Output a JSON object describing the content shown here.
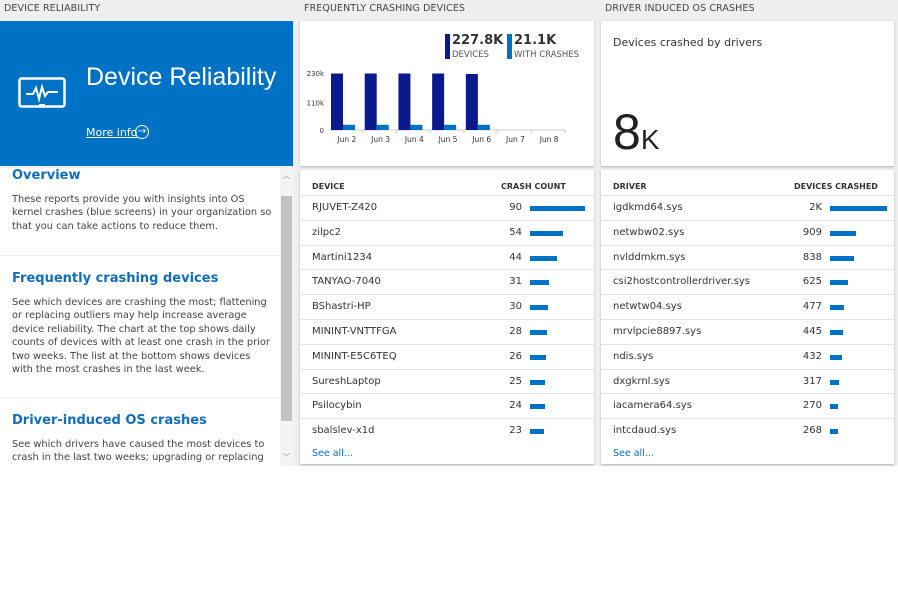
{
  "sections": {
    "left": "DEVICE RELIABILITY",
    "middle": "FREQUENTLY CRASHING DEVICES",
    "right": "DRIVER INDUCED OS CRASHES"
  },
  "hero": {
    "title": "Device Reliability",
    "more_info": "More info",
    "icon": "monitor-pulse-icon",
    "color": "#0072c6"
  },
  "info": [
    {
      "heading": "Overview",
      "text": "These reports provide you with insights into OS kernel crashes (blue screens) in your organization so that you can take actions to reduce them."
    },
    {
      "heading": "Frequently crashing devices",
      "text": "See which devices are crashing the most; flattening or replacing outliers may help increase average device reliability. The chart at the top shows daily counts of devices with at least one crash in the prior two weeks. The list at the bottom shows devices with the most crashes in the last week."
    },
    {
      "heading": "Driver-induced OS crashes",
      "text": "See which drivers have caused the most devices to crash in the last two weeks; upgrading or replacing these drivers"
    }
  ],
  "summary": {
    "devices_value": "227.8K",
    "devices_label": "DEVICES",
    "crashes_value": "21.1K",
    "crashes_label": "WITH CRASHES"
  },
  "chart_data": {
    "type": "bar",
    "categories": [
      "Jun 2",
      "Jun 3",
      "Jun 4",
      "Jun 5",
      "Jun 6",
      "Jun 7",
      "Jun 8"
    ],
    "series": [
      {
        "name": "DEVICES",
        "color": "#0a1a8c",
        "values": [
          228000,
          228000,
          228000,
          228000,
          226000,
          null,
          null
        ]
      },
      {
        "name": "WITH CRASHES",
        "color": "#0072c6",
        "values": [
          21000,
          21000,
          21000,
          21000,
          21000,
          null,
          null
        ]
      }
    ],
    "yticks": [
      "0",
      "110k",
      "230k"
    ],
    "ylim": [
      0,
      230000
    ]
  },
  "devices": {
    "col1": "DEVICE",
    "col2": "CRASH COUNT",
    "see_all": "See all...",
    "rows": [
      {
        "name": "RJUVET-Z420",
        "value": "90",
        "n": 90
      },
      {
        "name": "zilpc2",
        "value": "54",
        "n": 54
      },
      {
        "name": "Martini1234",
        "value": "44",
        "n": 44
      },
      {
        "name": "TANYAO-7040",
        "value": "31",
        "n": 31
      },
      {
        "name": "BShastri-HP",
        "value": "30",
        "n": 30
      },
      {
        "name": "MININT-VNTTFGA",
        "value": "28",
        "n": 28
      },
      {
        "name": "MININT-E5C6TEQ",
        "value": "26",
        "n": 26
      },
      {
        "name": "SureshLaptop",
        "value": "25",
        "n": 25
      },
      {
        "name": "Psilocybin",
        "value": "24",
        "n": 24
      },
      {
        "name": "sbalslev-x1d",
        "value": "23",
        "n": 23
      }
    ]
  },
  "drivers": {
    "tile_title": "Devices crashed by drivers",
    "big_value": "8",
    "big_unit": "K",
    "col1": "DRIVER",
    "col2": "DEVICES CRASHED",
    "see_all": "See all...",
    "rows": [
      {
        "name": "igdkmd64.sys",
        "value": "2K",
        "n": 2000
      },
      {
        "name": "netwbw02.sys",
        "value": "909",
        "n": 909
      },
      {
        "name": "nvlddmkm.sys",
        "value": "838",
        "n": 838
      },
      {
        "name": "csi2hostcontrollerdriver.sys",
        "value": "625",
        "n": 625
      },
      {
        "name": "netwtw04.sys",
        "value": "477",
        "n": 477
      },
      {
        "name": "mrvlpcie8897.sys",
        "value": "445",
        "n": 445
      },
      {
        "name": "ndis.sys",
        "value": "432",
        "n": 432
      },
      {
        "name": "dxgkrnl.sys",
        "value": "317",
        "n": 317
      },
      {
        "name": "iacamera64.sys",
        "value": "270",
        "n": 270
      },
      {
        "name": "intcdaud.sys",
        "value": "268",
        "n": 268
      }
    ]
  }
}
